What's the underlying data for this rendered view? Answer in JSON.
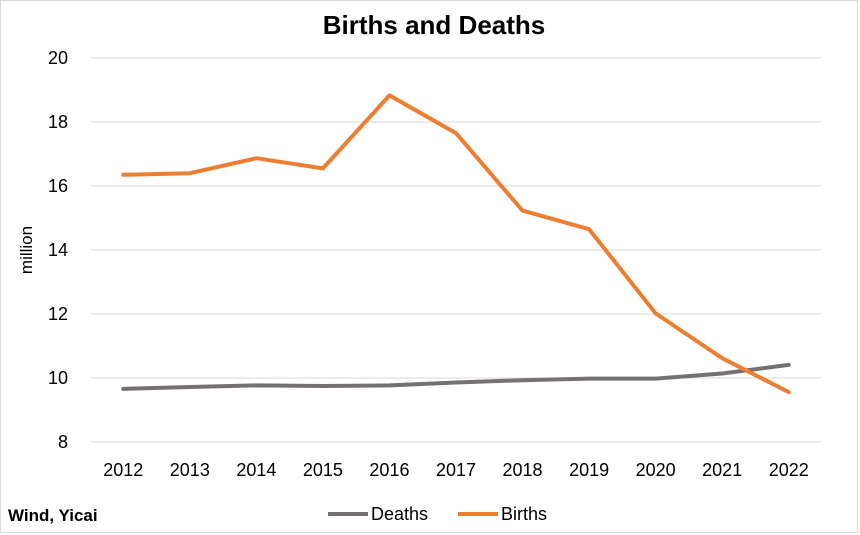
{
  "chart_data": {
    "type": "line",
    "title": "Births and Deaths",
    "xlabel": "",
    "ylabel": "million",
    "x": [
      "2012",
      "2013",
      "2014",
      "2015",
      "2016",
      "2017",
      "2018",
      "2019",
      "2020",
      "2021",
      "2022"
    ],
    "yticks": [
      "8",
      "10",
      "12",
      "14",
      "16",
      "18",
      "20"
    ],
    "ylim": [
      8,
      20
    ],
    "grid": true,
    "legend_position": "bottom",
    "series": [
      {
        "name": "Deaths",
        "color": "#767171",
        "values": [
          9.66,
          9.72,
          9.77,
          9.75,
          9.77,
          9.86,
          9.93,
          9.98,
          9.98,
          10.14,
          10.41
        ]
      },
      {
        "name": "Births",
        "color": "#ED7D31",
        "values": [
          16.35,
          16.4,
          16.87,
          16.55,
          18.83,
          17.65,
          15.23,
          14.65,
          12.02,
          10.62,
          9.56
        ]
      }
    ]
  },
  "source": "Wind, Yicai"
}
